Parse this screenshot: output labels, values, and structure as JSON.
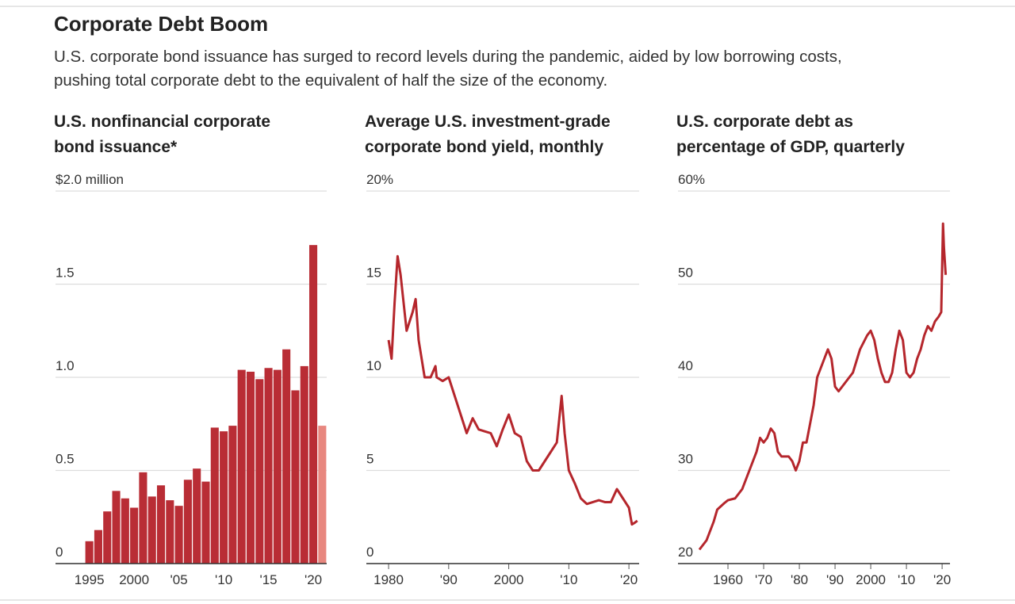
{
  "title": "Corporate Debt Boom",
  "subtitle": [
    "U.S. corporate bond issuance has surged to record levels during the pandemic, aided by low borrowing costs,",
    "pushing total corporate debt to the equivalent of half the size of the economy."
  ],
  "chart_data": [
    {
      "type": "bar",
      "title": [
        "U.S. nonfinancial corporate",
        "bond issuance*"
      ],
      "categories": [
        "1995",
        null,
        null,
        null,
        null,
        "2000",
        null,
        null,
        null,
        null,
        "'05",
        null,
        null,
        null,
        null,
        "'10",
        null,
        null,
        null,
        null,
        "'15",
        null,
        null,
        null,
        null,
        "'20",
        null
      ],
      "values": [
        0.12,
        0.18,
        0.28,
        0.39,
        0.35,
        0.3,
        0.49,
        0.36,
        0.42,
        0.34,
        0.31,
        0.45,
        0.51,
        0.44,
        0.73,
        0.71,
        0.74,
        1.04,
        1.03,
        0.99,
        1.05,
        1.04,
        1.15,
        0.93,
        1.06,
        1.71,
        0.74
      ],
      "colors": [
        "#b92d35",
        "#b92d35",
        "#b92d35",
        "#b92d35",
        "#b92d35",
        "#b92d35",
        "#b92d35",
        "#b92d35",
        "#b92d35",
        "#b92d35",
        "#b92d35",
        "#b92d35",
        "#b92d35",
        "#b92d35",
        "#b92d35",
        "#b92d35",
        "#b92d35",
        "#b92d35",
        "#b92d35",
        "#b92d35",
        "#b92d35",
        "#b92d35",
        "#b92d35",
        "#b92d35",
        "#b92d35",
        "#b92d35",
        "#e8877f"
      ],
      "ylim": [
        0,
        2
      ],
      "yticks": [
        0,
        0.5,
        {
          "value": 1,
          "label": "1.0"
        },
        1.5,
        {
          "value": 2,
          "label": "$2.0 million"
        }
      ],
      "grid": true
    },
    {
      "type": "line",
      "title": [
        "Average U.S. investment-grade",
        "corporate bond yield, monthly"
      ],
      "x": [
        1980,
        1980.5,
        1981,
        1981.5,
        1982,
        1982.5,
        1983,
        1984,
        1984.5,
        1985,
        1986,
        1987,
        1987.8,
        1988,
        1989,
        1990,
        1991,
        1992,
        1993,
        1994,
        1995,
        1996,
        1997,
        1998,
        1999,
        2000,
        2001,
        2002,
        2003,
        2004,
        2005,
        2006,
        2007,
        2008,
        2008.8,
        2009.3,
        2010,
        2011,
        2012,
        2013,
        2014,
        2015,
        2016,
        2017,
        2018,
        2019,
        2020,
        2020.5,
        2021,
        2021.4
      ],
      "series": [
        {
          "name": "Yield",
          "color": "#b5262c",
          "values": [
            12,
            11,
            14,
            16.5,
            15.5,
            14,
            12.5,
            13.5,
            14.2,
            12,
            10,
            10,
            10.6,
            10,
            9.8,
            10,
            9,
            8,
            7,
            7.8,
            7.2,
            7.1,
            7,
            6.3,
            7.2,
            8,
            7,
            6.8,
            5.5,
            5,
            5,
            5.5,
            6,
            6.5,
            9,
            7,
            5,
            4.3,
            3.5,
            3.2,
            3.3,
            3.4,
            3.3,
            3.3,
            4,
            3.5,
            3,
            2.1,
            2.2,
            2.3
          ]
        }
      ],
      "xlim": [
        1976.3,
        2021.7
      ],
      "xticks": [
        1980,
        {
          "value": 1990,
          "label": "'90"
        },
        2000,
        {
          "value": 2010,
          "label": "'10"
        },
        {
          "value": 2020,
          "label": "'20"
        }
      ],
      "ylim": [
        0,
        20
      ],
      "yticks": [
        0,
        5,
        10,
        15,
        {
          "value": 20,
          "label": "20%"
        }
      ],
      "grid": true
    },
    {
      "type": "line",
      "title": [
        "U.S. corporate debt as",
        "percentage of GDP, quarterly"
      ],
      "x": [
        1952,
        1954,
        1956,
        1957,
        1959,
        1960,
        1962,
        1964,
        1966,
        1968,
        1969,
        1970,
        1971,
        1972,
        1973,
        1974,
        1975,
        1977,
        1978,
        1979,
        1980,
        1981,
        1982,
        1983,
        1984,
        1985,
        1986,
        1987,
        1988,
        1989,
        1990,
        1991,
        1993,
        1995,
        1997,
        1999,
        2000,
        2001,
        2002,
        2003,
        2004,
        2005,
        2006,
        2007,
        2008,
        2009,
        2010,
        2011,
        2012,
        2013,
        2014,
        2015,
        2016,
        2017,
        2018,
        2019,
        2019.75,
        2020.25,
        2020.5,
        2021
      ],
      "series": [
        {
          "name": "Debt",
          "color": "#b5262c",
          "values": [
            21.5,
            22.5,
            24.5,
            25.8,
            26.5,
            26.8,
            27,
            28,
            30,
            32,
            33.5,
            33,
            33.5,
            34.5,
            34,
            32,
            31.5,
            31.5,
            31,
            30,
            31,
            33,
            33,
            35,
            37,
            40,
            41,
            42,
            43,
            42,
            39,
            38.5,
            39.5,
            40.5,
            43,
            44.5,
            45,
            44,
            42,
            40.5,
            39.5,
            39.5,
            40.5,
            43,
            45,
            44,
            40.5,
            40,
            40.5,
            42,
            43,
            44.5,
            45.5,
            45,
            46,
            46.5,
            47,
            56.5,
            54,
            51
          ]
        }
      ],
      "xlim": [
        1946,
        2022.2
      ],
      "xticks": [
        1960,
        {
          "value": 1970,
          "label": "'70"
        },
        {
          "value": 1980,
          "label": "'80"
        },
        {
          "value": 1990,
          "label": "'90"
        },
        2000,
        {
          "value": 2010,
          "label": "'10"
        },
        {
          "value": 2020,
          "label": "'20"
        }
      ],
      "ylim": [
        20,
        60
      ],
      "yticks": [
        20,
        30,
        40,
        50,
        {
          "value": 60,
          "label": "60%"
        }
      ],
      "grid": true
    }
  ]
}
